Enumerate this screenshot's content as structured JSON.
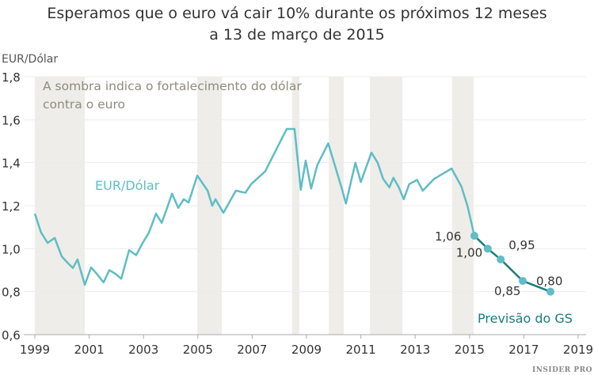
{
  "chart_data": {
    "type": "line",
    "title": "Esperamos que o euro vá cair 10% durante os próximos 12 meses",
    "subtitle": "a 13 de março de 2015",
    "ylabel": "EUR/Dólar",
    "xlim": [
      1999,
      2019.2
    ],
    "ylim": [
      0.6,
      1.8
    ],
    "xticks": [
      "1999",
      "2001",
      "2003",
      "2005",
      "2007",
      "2009",
      "2011",
      "2013",
      "2015",
      "2017",
      "2019"
    ],
    "yticks": [
      "0,6",
      "0,8",
      "1,0",
      "1,2",
      "1,4",
      "1,6",
      "1,8"
    ],
    "grid": "horizontal",
    "shade_note": "A sombra indica o fortalecimento do dólar contra o euro",
    "shaded_periods": [
      [
        1999.0,
        2000.84
      ],
      [
        2004.98,
        2005.88
      ],
      [
        2008.47,
        2008.74
      ],
      [
        2009.82,
        2010.37
      ],
      [
        2011.33,
        2012.53
      ],
      [
        2014.36,
        2015.15
      ]
    ],
    "colors": {
      "history": "#5fbdc5",
      "forecast": "#1b7c7e",
      "shade": "#efede9",
      "note": "#8f8c7c"
    },
    "series": [
      {
        "name": "EUR/Dólar",
        "x": [
          1999.0,
          1999.23,
          1999.47,
          1999.73,
          1999.99,
          2000.2,
          2000.4,
          2000.57,
          2000.84,
          2001.07,
          2001.3,
          2001.53,
          2001.74,
          2001.97,
          2002.18,
          2002.47,
          2002.73,
          2002.97,
          2003.2,
          2003.46,
          2003.67,
          2003.87,
          2004.05,
          2004.28,
          2004.48,
          2004.66,
          2004.98,
          2005.36,
          2005.53,
          2005.65,
          2005.94,
          2006.4,
          2006.75,
          2006.96,
          2007.48,
          2008.27,
          2008.56,
          2008.79,
          2008.97,
          2009.17,
          2009.4,
          2009.8,
          2010.3,
          2010.45,
          2010.8,
          2011.0,
          2011.39,
          2011.62,
          2011.82,
          2012.05,
          2012.2,
          2012.4,
          2012.58,
          2012.78,
          2013.07,
          2013.28,
          2013.7,
          2014.17,
          2014.34,
          2014.7,
          2014.93,
          2015.18
        ],
        "y": [
          1.163,
          1.075,
          1.027,
          1.05,
          0.964,
          0.935,
          0.91,
          0.95,
          0.832,
          0.913,
          0.88,
          0.843,
          0.9,
          0.883,
          0.86,
          0.993,
          0.97,
          1.027,
          1.075,
          1.163,
          1.12,
          1.19,
          1.256,
          1.19,
          1.23,
          1.215,
          1.34,
          1.27,
          1.2,
          1.23,
          1.167,
          1.27,
          1.26,
          1.3,
          1.36,
          1.557,
          1.557,
          1.274,
          1.41,
          1.28,
          1.39,
          1.49,
          1.28,
          1.21,
          1.4,
          1.31,
          1.447,
          1.4,
          1.325,
          1.285,
          1.33,
          1.285,
          1.23,
          1.3,
          1.32,
          1.27,
          1.325,
          1.36,
          1.373,
          1.29,
          1.197,
          1.06
        ]
      },
      {
        "name": "Previsão do GS",
        "x": [
          2015.18,
          2015.67,
          2016.15,
          2016.96,
          2017.98
        ],
        "y": [
          1.06,
          1.0,
          0.95,
          0.85,
          0.8
        ],
        "labels": [
          "1,06",
          "1,00",
          "0,95",
          "0,85",
          "0,80"
        ]
      }
    ]
  },
  "logo": "INSIDER PRO"
}
